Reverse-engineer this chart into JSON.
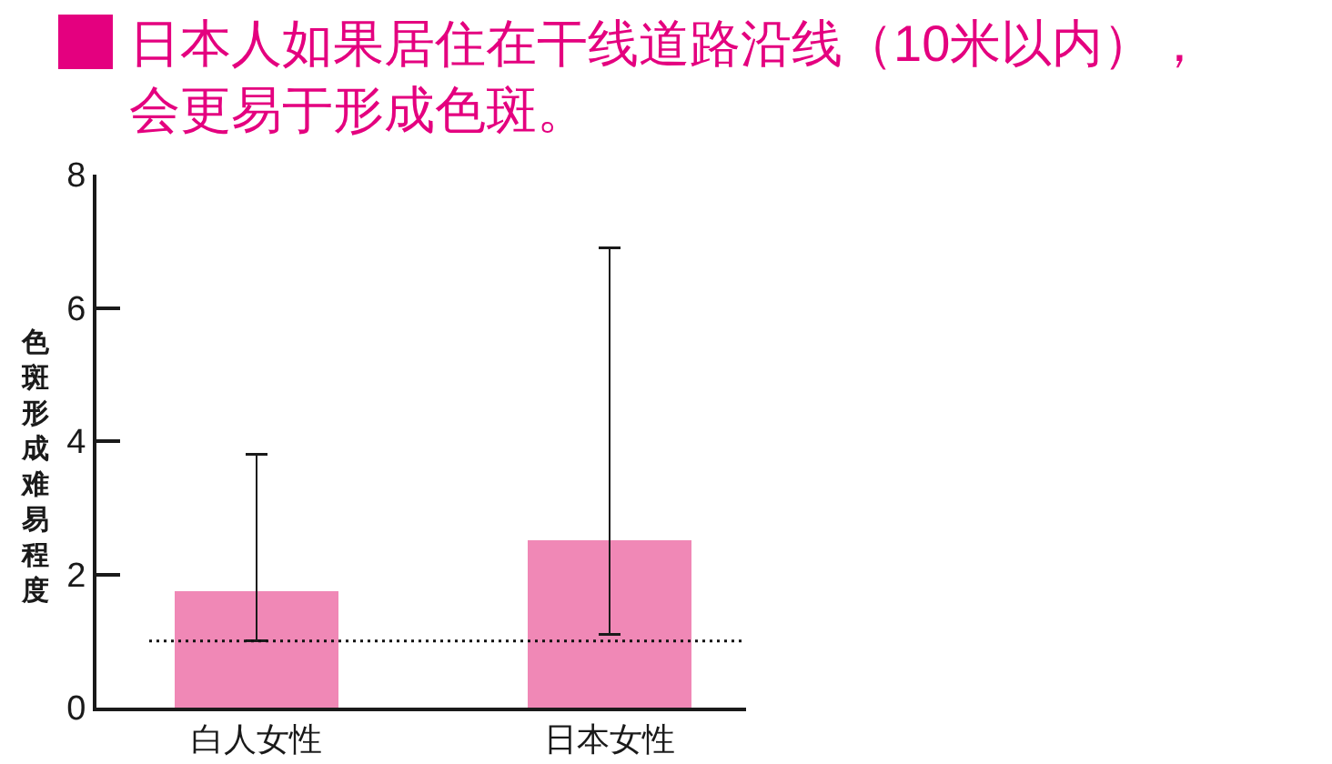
{
  "chart_data": {
    "type": "bar",
    "title": "日本人如果居住在干线道路沿线（10米以内），会更易于形成色斑。",
    "ylabel": "色斑形成难易程度",
    "categories": [
      "白人女性",
      "日本女性"
    ],
    "values": [
      1.75,
      2.5
    ],
    "errors": [
      [
        1.0,
        3.8
      ],
      [
        1.1,
        6.9
      ]
    ],
    "color": "#f088b6",
    "ylim": [
      0,
      8
    ],
    "yticks": [
      0,
      2,
      4,
      6,
      8
    ],
    "ref_lines": [
      {
        "axis": "y",
        "value": 1,
        "line_style": "dotted",
        "color": "#111111"
      }
    ],
    "grid": false
  }
}
